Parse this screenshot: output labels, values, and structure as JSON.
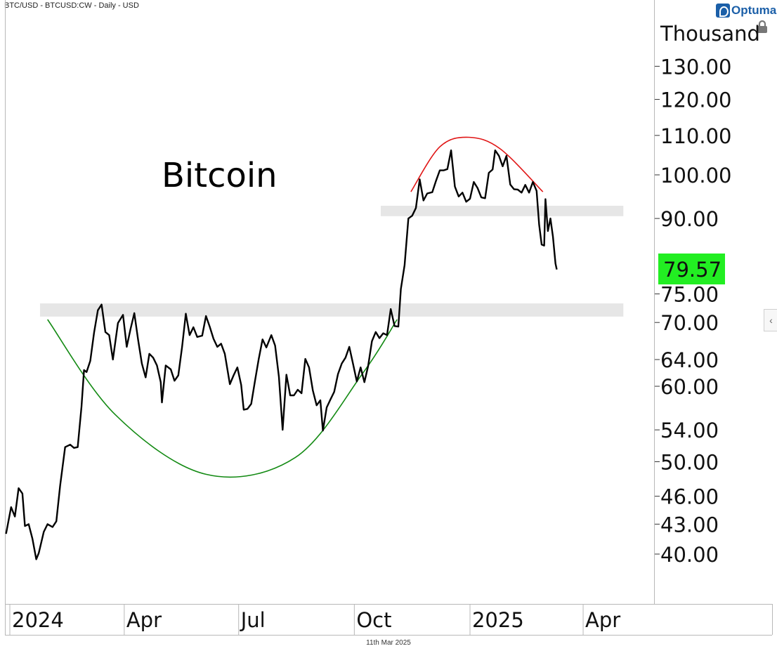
{
  "header": {
    "symbol_line": "BTC/USD - BTCUSD:CW - Daily - USD"
  },
  "brand": {
    "name": "Optuma",
    "color": "#1b5fa8"
  },
  "footer": {
    "date": "11th Mar 2025"
  },
  "icons": {
    "lock": "lock-icon",
    "collapse": "chevron-left-icon"
  },
  "chart_data": {
    "type": "line",
    "title": "Bitcoin",
    "y_unit_label": "Thousand",
    "y_scale": "log",
    "ylim": [
      36,
      145
    ],
    "y_ticks": [
      "130.00",
      "120.00",
      "110.00",
      "100.00",
      "90.00",
      "75.00",
      "70.00",
      "64.00",
      "60.00",
      "54.00",
      "50.00",
      "46.00",
      "43.00",
      "40.00"
    ],
    "x_ticks": [
      {
        "label": "2024",
        "date": "2024-01-01"
      },
      {
        "label": "Apr",
        "date": "2024-04-01"
      },
      {
        "label": "Jul",
        "date": "2024-07-01"
      },
      {
        "label": "Oct",
        "date": "2024-10-01"
      },
      {
        "label": "2025",
        "date": "2025-01-01"
      },
      {
        "label": "Apr",
        "date": "2025-04-01"
      }
    ],
    "xlim": [
      "2023-12-29",
      "2025-05-16"
    ],
    "last_value": {
      "label": "79.57",
      "value": 79.57,
      "color": "#22ee22"
    },
    "support_zones": [
      {
        "low": 90.5,
        "high": 92.8,
        "start": "2024-10-22",
        "end": "2025-05-03",
        "color": "#e6e6e6"
      },
      {
        "low": 71.0,
        "high": 73.3,
        "start": "2024-01-25",
        "end": "2025-05-03",
        "color": "#e6e6e6"
      }
    ],
    "arcs": [
      {
        "name": "rounding-bottom",
        "color": "#138a13",
        "points": [
          [
            "2024-01-31",
            70.5
          ],
          [
            "2024-03-25",
            56.0
          ],
          [
            "2024-06-05",
            48.5
          ],
          [
            "2024-08-15",
            50.5
          ],
          [
            "2024-10-08",
            62.0
          ],
          [
            "2024-11-04",
            70.5
          ]
        ]
      },
      {
        "name": "rounding-top",
        "color": "#e01515",
        "points": [
          [
            "2024-11-15",
            96.0
          ],
          [
            "2024-12-08",
            107.0
          ],
          [
            "2024-12-31",
            109.5
          ],
          [
            "2025-01-25",
            106.5
          ],
          [
            "2025-02-28",
            96.0
          ]
        ]
      }
    ],
    "series": [
      {
        "color": "#000000",
        "points": [
          [
            "2023-12-29",
            42.0
          ],
          [
            "2024-01-02",
            44.8
          ],
          [
            "2024-01-05",
            43.8
          ],
          [
            "2024-01-08",
            46.9
          ],
          [
            "2024-01-11",
            46.3
          ],
          [
            "2024-01-13",
            42.8
          ],
          [
            "2024-01-16",
            43.0
          ],
          [
            "2024-01-19",
            41.5
          ],
          [
            "2024-01-22",
            39.5
          ],
          [
            "2024-01-24",
            40.1
          ],
          [
            "2024-01-28",
            42.2
          ],
          [
            "2024-01-31",
            43.0
          ],
          [
            "2024-02-04",
            42.7
          ],
          [
            "2024-02-07",
            43.3
          ],
          [
            "2024-02-10",
            47.2
          ],
          [
            "2024-02-14",
            51.8
          ],
          [
            "2024-02-18",
            52.1
          ],
          [
            "2024-02-21",
            51.7
          ],
          [
            "2024-02-24",
            51.8
          ],
          [
            "2024-02-27",
            57.1
          ],
          [
            "2024-02-29",
            62.4
          ],
          [
            "2024-03-02",
            62.1
          ],
          [
            "2024-03-05",
            63.8
          ],
          [
            "2024-03-08",
            68.3
          ],
          [
            "2024-03-11",
            72.1
          ],
          [
            "2024-03-14",
            73.1
          ],
          [
            "2024-03-17",
            68.4
          ],
          [
            "2024-03-20",
            67.9
          ],
          [
            "2024-03-23",
            64.0
          ],
          [
            "2024-03-27",
            69.9
          ],
          [
            "2024-03-31",
            71.3
          ],
          [
            "2024-04-03",
            66.0
          ],
          [
            "2024-04-06",
            68.9
          ],
          [
            "2024-04-09",
            71.6
          ],
          [
            "2024-04-12",
            67.2
          ],
          [
            "2024-04-15",
            63.4
          ],
          [
            "2024-04-18",
            61.3
          ],
          [
            "2024-04-21",
            64.9
          ],
          [
            "2024-04-24",
            64.3
          ],
          [
            "2024-04-27",
            63.1
          ],
          [
            "2024-04-30",
            60.6
          ],
          [
            "2024-05-01",
            57.7
          ],
          [
            "2024-05-04",
            63.1
          ],
          [
            "2024-05-08",
            62.5
          ],
          [
            "2024-05-11",
            60.8
          ],
          [
            "2024-05-14",
            61.6
          ],
          [
            "2024-05-17",
            66.0
          ],
          [
            "2024-05-20",
            71.5
          ],
          [
            "2024-05-23",
            67.9
          ],
          [
            "2024-05-26",
            69.2
          ],
          [
            "2024-05-29",
            67.6
          ],
          [
            "2024-06-02",
            67.8
          ],
          [
            "2024-06-05",
            71.1
          ],
          [
            "2024-06-08",
            69.3
          ],
          [
            "2024-06-11",
            67.3
          ],
          [
            "2024-06-14",
            66.0
          ],
          [
            "2024-06-17",
            66.5
          ],
          [
            "2024-06-20",
            64.9
          ],
          [
            "2024-06-24",
            60.3
          ],
          [
            "2024-06-27",
            61.6
          ],
          [
            "2024-06-30",
            62.8
          ],
          [
            "2024-07-03",
            60.2
          ],
          [
            "2024-07-05",
            56.7
          ],
          [
            "2024-07-08",
            56.8
          ],
          [
            "2024-07-11",
            57.5
          ],
          [
            "2024-07-14",
            60.8
          ],
          [
            "2024-07-17",
            64.1
          ],
          [
            "2024-07-20",
            67.2
          ],
          [
            "2024-07-23",
            65.9
          ],
          [
            "2024-07-27",
            67.9
          ],
          [
            "2024-07-30",
            66.2
          ],
          [
            "2024-08-02",
            61.4
          ],
          [
            "2024-08-05",
            54.0
          ],
          [
            "2024-08-08",
            61.7
          ],
          [
            "2024-08-11",
            58.7
          ],
          [
            "2024-08-14",
            58.7
          ],
          [
            "2024-08-17",
            59.5
          ],
          [
            "2024-08-20",
            59.0
          ],
          [
            "2024-08-23",
            64.1
          ],
          [
            "2024-08-26",
            62.8
          ],
          [
            "2024-08-29",
            59.4
          ],
          [
            "2024-09-01",
            57.3
          ],
          [
            "2024-09-04",
            58.0
          ],
          [
            "2024-09-06",
            53.9
          ],
          [
            "2024-09-09",
            57.0
          ],
          [
            "2024-09-12",
            58.1
          ],
          [
            "2024-09-15",
            59.2
          ],
          [
            "2024-09-18",
            61.8
          ],
          [
            "2024-09-21",
            63.4
          ],
          [
            "2024-09-24",
            64.3
          ],
          [
            "2024-09-27",
            66.0
          ],
          [
            "2024-09-30",
            63.3
          ],
          [
            "2024-10-03",
            60.7
          ],
          [
            "2024-10-06",
            62.8
          ],
          [
            "2024-10-09",
            60.6
          ],
          [
            "2024-10-12",
            63.0
          ],
          [
            "2024-10-15",
            66.9
          ],
          [
            "2024-10-18",
            68.4
          ],
          [
            "2024-10-21",
            67.4
          ],
          [
            "2024-10-24",
            68.2
          ],
          [
            "2024-10-27",
            67.9
          ],
          [
            "2024-10-30",
            72.3
          ],
          [
            "2024-11-02",
            69.4
          ],
          [
            "2024-11-05",
            69.3
          ],
          [
            "2024-11-07",
            75.9
          ],
          [
            "2024-11-10",
            80.4
          ],
          [
            "2024-11-13",
            90.0
          ],
          [
            "2024-11-16",
            90.6
          ],
          [
            "2024-11-19",
            92.3
          ],
          [
            "2024-11-22",
            98.9
          ],
          [
            "2024-11-25",
            94.0
          ],
          [
            "2024-11-28",
            95.6
          ],
          [
            "2024-12-02",
            95.9
          ],
          [
            "2024-12-05",
            98.6
          ],
          [
            "2024-12-08",
            101.1
          ],
          [
            "2024-12-11",
            101.1
          ],
          [
            "2024-12-14",
            101.4
          ],
          [
            "2024-12-17",
            106.1
          ],
          [
            "2024-12-20",
            97.2
          ],
          [
            "2024-12-23",
            94.9
          ],
          [
            "2024-12-26",
            95.8
          ],
          [
            "2024-12-29",
            93.7
          ],
          [
            "2025-01-01",
            94.4
          ],
          [
            "2025-01-04",
            98.3
          ],
          [
            "2025-01-07",
            96.9
          ],
          [
            "2025-01-10",
            94.7
          ],
          [
            "2025-01-13",
            94.5
          ],
          [
            "2025-01-16",
            100.5
          ],
          [
            "2025-01-19",
            101.3
          ],
          [
            "2025-01-21",
            106.1
          ],
          [
            "2025-01-24",
            104.7
          ],
          [
            "2025-01-27",
            102.1
          ],
          [
            "2025-01-30",
            104.7
          ],
          [
            "2025-02-02",
            97.7
          ],
          [
            "2025-02-05",
            96.6
          ],
          [
            "2025-02-08",
            96.5
          ],
          [
            "2025-02-11",
            95.8
          ],
          [
            "2025-02-14",
            97.6
          ],
          [
            "2025-02-17",
            95.8
          ],
          [
            "2025-02-20",
            98.3
          ],
          [
            "2025-02-23",
            96.2
          ],
          [
            "2025-02-25",
            88.7
          ],
          [
            "2025-02-27",
            84.5
          ],
          [
            "2025-03-01",
            84.3
          ],
          [
            "2025-03-02",
            94.3
          ],
          [
            "2025-03-04",
            87.3
          ],
          [
            "2025-03-06",
            90.0
          ],
          [
            "2025-03-08",
            86.1
          ],
          [
            "2025-03-10",
            80.7
          ],
          [
            "2025-03-11",
            79.57
          ]
        ]
      }
    ]
  }
}
